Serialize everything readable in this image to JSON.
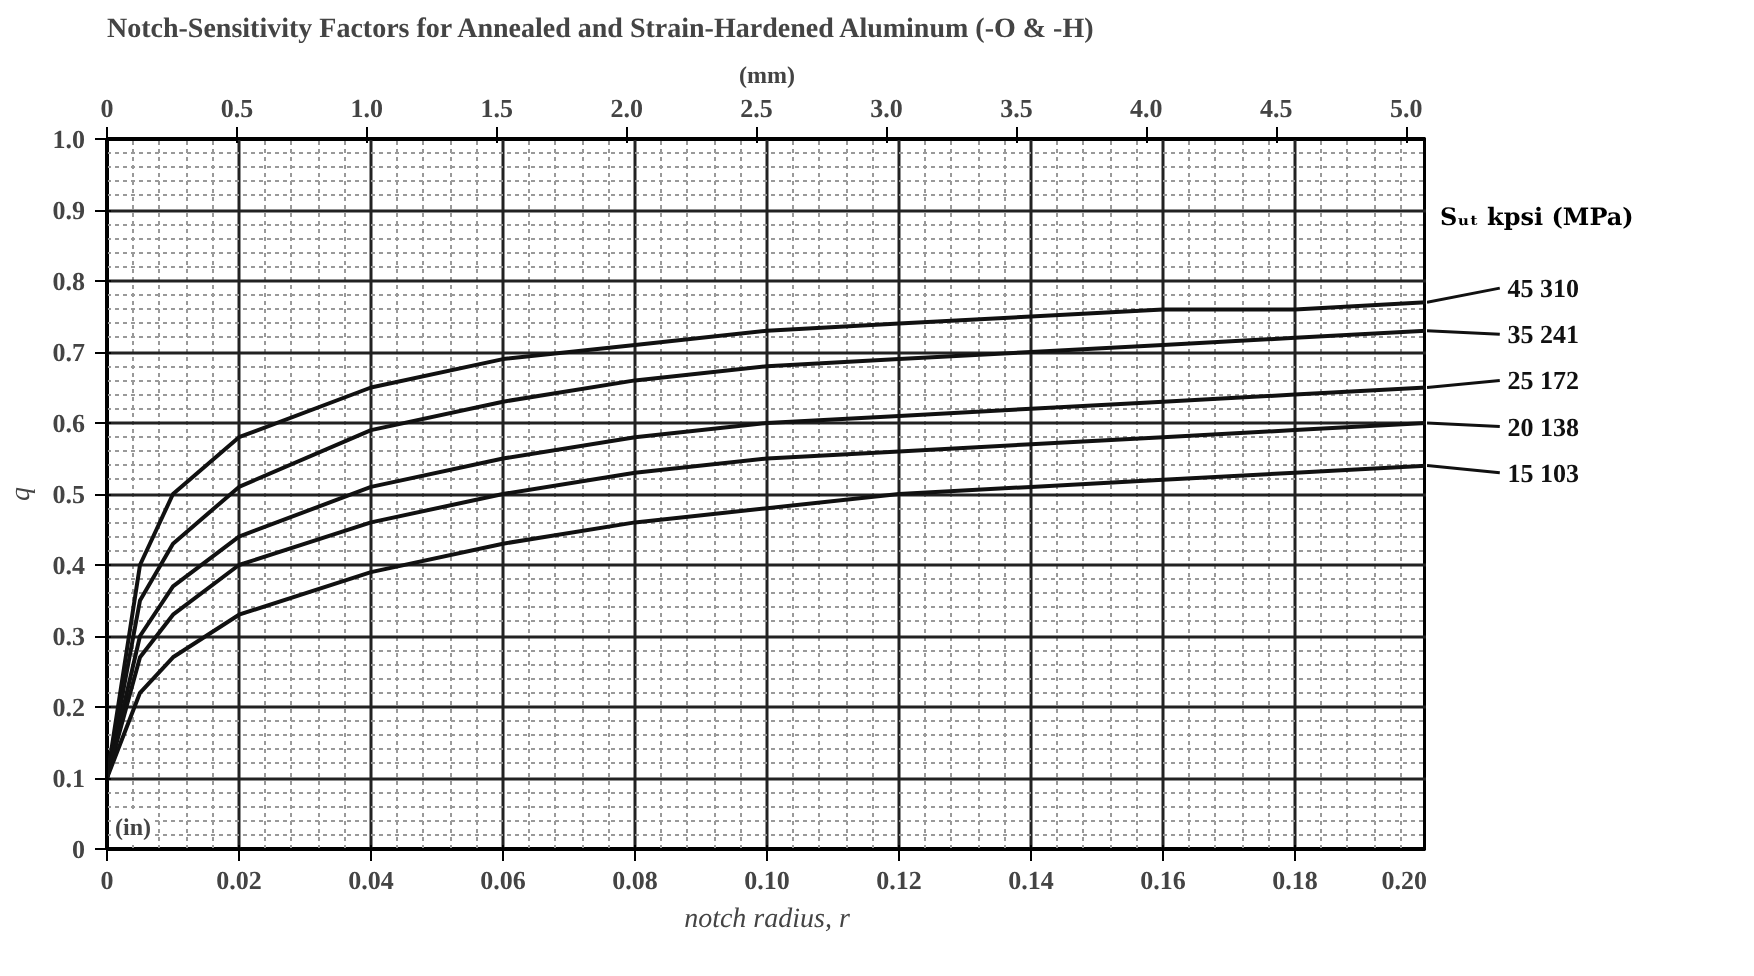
{
  "chart_data": {
    "type": "line",
    "title": "Notch-Sensitivity Factors for Annealed and Strain-Hardened Aluminum (-O & -H)",
    "xlabel": "notch radius, r",
    "ylabel": "q",
    "x2label": "(mm)",
    "legend_title": "Sᵤₜ  kpsi (MPa)",
    "annotations": [
      "(in)"
    ],
    "x": [
      0,
      0.005,
      0.01,
      0.02,
      0.04,
      0.06,
      0.08,
      0.1,
      0.12,
      0.14,
      0.16,
      0.18,
      0.2
    ],
    "series": [
      {
        "name": "45   310",
        "color": "#111111",
        "values": [
          0.1,
          0.4,
          0.5,
          0.58,
          0.65,
          0.69,
          0.71,
          0.73,
          0.74,
          0.75,
          0.76,
          0.76,
          0.77
        ]
      },
      {
        "name": "35   241",
        "color": "#111111",
        "values": [
          0.1,
          0.35,
          0.43,
          0.51,
          0.59,
          0.63,
          0.66,
          0.68,
          0.69,
          0.7,
          0.71,
          0.72,
          0.73
        ]
      },
      {
        "name": "25   172",
        "color": "#111111",
        "values": [
          0.1,
          0.3,
          0.37,
          0.44,
          0.51,
          0.55,
          0.58,
          0.6,
          0.61,
          0.62,
          0.63,
          0.64,
          0.65
        ]
      },
      {
        "name": "20   138",
        "color": "#111111",
        "values": [
          0.1,
          0.27,
          0.33,
          0.4,
          0.46,
          0.5,
          0.53,
          0.55,
          0.56,
          0.57,
          0.58,
          0.59,
          0.6
        ]
      },
      {
        "name": "15   103",
        "color": "#111111",
        "values": [
          0.1,
          0.22,
          0.27,
          0.33,
          0.39,
          0.43,
          0.46,
          0.48,
          0.5,
          0.51,
          0.52,
          0.53,
          0.54
        ]
      }
    ],
    "xlim": [
      0,
      0.2
    ],
    "ylim": [
      0,
      1.0
    ],
    "xticks": [
      0,
      {
        "value": 0.02,
        "label": "0.02"
      },
      {
        "value": 0.04,
        "label": "0.04"
      },
      {
        "value": 0.06,
        "label": "0.06"
      },
      {
        "value": 0.08,
        "label": "0.08"
      },
      {
        "value": 0.1,
        "label": "0.10"
      },
      {
        "value": 0.12,
        "label": "0.12"
      },
      {
        "value": 0.14,
        "label": "0.14"
      },
      {
        "value": 0.16,
        "label": "0.16"
      },
      {
        "value": 0.18,
        "label": "0.18"
      },
      {
        "value": 0.2,
        "label": "0.20"
      }
    ],
    "yticks": [
      0,
      0.1,
      0.2,
      0.3,
      0.4,
      0.5,
      0.6,
      0.7,
      0.8,
      0.9,
      {
        "value": 1.0,
        "label": "1.0"
      }
    ],
    "x2lim": [
      0,
      5.08
    ],
    "x2ticks": [
      0,
      0.5,
      {
        "value": 1.0,
        "label": "1.0"
      },
      1.5,
      {
        "value": 2.0,
        "label": "2.0"
      },
      2.5,
      {
        "value": 3.0,
        "label": "3.0"
      },
      3.5,
      {
        "value": 4.0,
        "label": "4.0"
      },
      4.5,
      {
        "value": 5.0,
        "label": "5.0"
      }
    ],
    "grid": true,
    "legend": "right",
    "marker": "none",
    "line_style": "solid"
  }
}
